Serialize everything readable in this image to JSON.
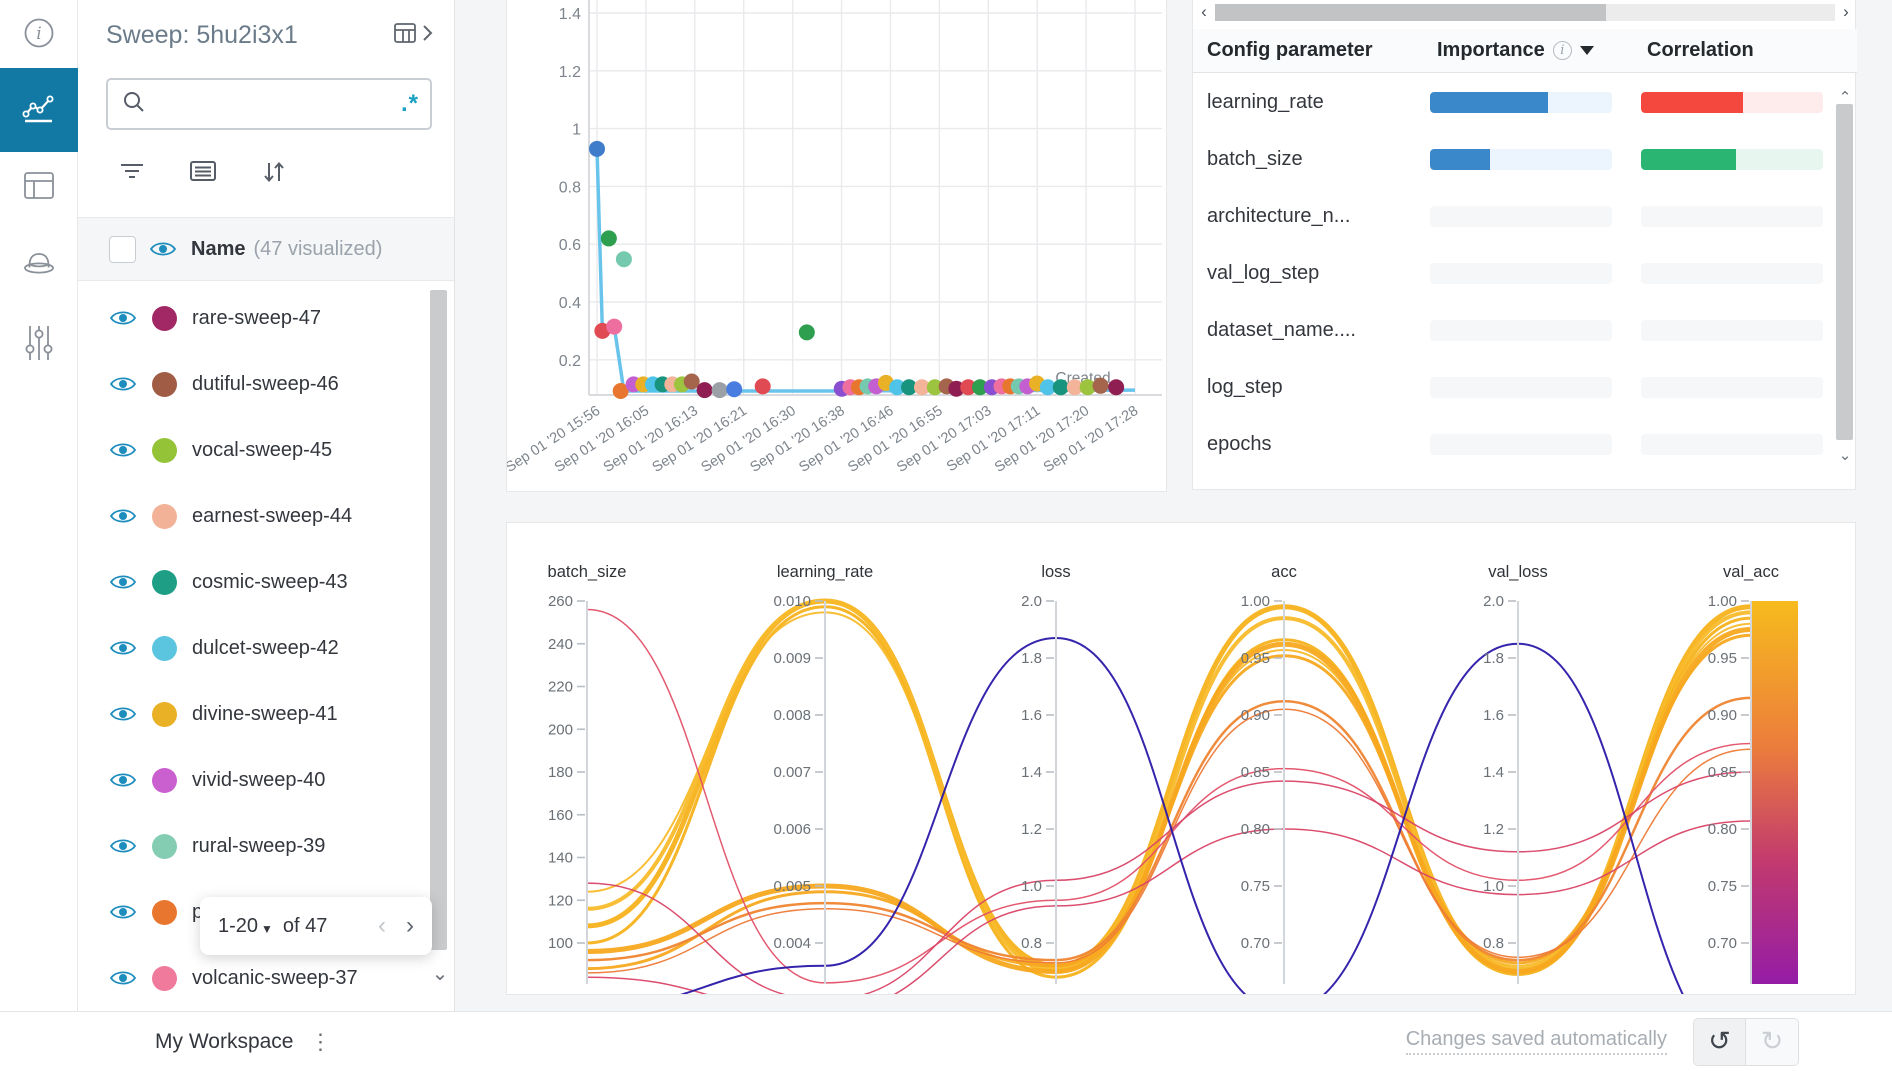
{
  "nav_rail": {
    "active_color": "#1279a5",
    "items": [
      {
        "icon": "info-icon",
        "active": false
      },
      {
        "icon": "panels-chart-icon",
        "active": true
      },
      {
        "icon": "runs-table-icon",
        "active": false
      },
      {
        "icon": "sweep-hat-icon",
        "active": false
      },
      {
        "icon": "controls-icon",
        "active": false
      }
    ]
  },
  "sidebar": {
    "title": "Sweep: 5hu2i3x1",
    "search": {
      "placeholder": "",
      "regex_label": ".*"
    },
    "list_header": {
      "name_label": "Name",
      "count_label": "(47 visualized)"
    },
    "runs": [
      {
        "name": "rare-sweep-47",
        "color": "#a12864"
      },
      {
        "name": "dutiful-sweep-46",
        "color": "#a05c45"
      },
      {
        "name": "vocal-sweep-45",
        "color": "#94c337"
      },
      {
        "name": "earnest-sweep-44",
        "color": "#f2b297"
      },
      {
        "name": "cosmic-sweep-43",
        "color": "#1d9e85"
      },
      {
        "name": "dulcet-sweep-42",
        "color": "#5bc5e0"
      },
      {
        "name": "divine-sweep-41",
        "color": "#e9b126"
      },
      {
        "name": "vivid-sweep-40",
        "color": "#ca5fcf"
      },
      {
        "name": "rural-sweep-39",
        "color": "#85cdb2"
      },
      {
        "name": "p",
        "color": "#e8762e"
      },
      {
        "name": "volcanic-sweep-37",
        "color": "#ef7a9b"
      }
    ],
    "pagination": {
      "range_label": "1-20",
      "of_label": "of 47"
    }
  },
  "importance_panel": {
    "col_param": "Config parameter",
    "col_importance": "Importance",
    "col_correlation": "Correlation",
    "rows": [
      {
        "param": "learning_rate",
        "importance": 0.65,
        "importance_color": "#3a87c9",
        "importance_track": "#ecf5fd",
        "correlation": 0.56,
        "correlation_color": "#f4483e",
        "correlation_track": "#fdeceb"
      },
      {
        "param": "batch_size",
        "importance": 0.33,
        "importance_color": "#3a87c9",
        "importance_track": "#ecf5fd",
        "correlation": 0.52,
        "correlation_color": "#2bb573",
        "correlation_track": "#e7f7f0"
      },
      {
        "param": "architecture_n...",
        "importance": 0,
        "importance_color": "#3a87c9",
        "importance_track": "#f6f7f9",
        "correlation": 0,
        "correlation_color": "#2bb573",
        "correlation_track": "#f6f7f9"
      },
      {
        "param": "val_log_step",
        "importance": 0,
        "importance_color": "#3a87c9",
        "importance_track": "#f6f7f9",
        "correlation": 0,
        "correlation_color": "#2bb573",
        "correlation_track": "#f6f7f9"
      },
      {
        "param": "dataset_name....",
        "importance": 0,
        "importance_color": "#3a87c9",
        "importance_track": "#f6f7f9",
        "correlation": 0,
        "correlation_color": "#2bb573",
        "correlation_track": "#f6f7f9"
      },
      {
        "param": "log_step",
        "importance": 0,
        "importance_color": "#3a87c9",
        "importance_track": "#f6f7f9",
        "correlation": 0,
        "correlation_color": "#2bb573",
        "correlation_track": "#f6f7f9"
      },
      {
        "param": "epochs",
        "importance": 0,
        "importance_color": "#3a87c9",
        "importance_track": "#f6f7f9",
        "correlation": 0,
        "correlation_color": "#2bb573",
        "correlation_track": "#f6f7f9"
      }
    ]
  },
  "footer": {
    "workspace_label": "My Workspace",
    "status_text": "Changes saved automatically"
  },
  "chart_data": [
    {
      "type": "scatter",
      "title": "",
      "xlabel": "Created",
      "ylabel": "",
      "ylim": [
        0.08,
        1.45
      ],
      "yticks": [
        {
          "v": 1.4,
          "label": "1.4"
        },
        {
          "v": 1.2,
          "label": "1.2"
        },
        {
          "v": 1.0,
          "label": "1"
        },
        {
          "v": 0.8,
          "label": "0.8"
        },
        {
          "v": 0.6,
          "label": "0.6"
        },
        {
          "v": 0.4,
          "label": "0.4"
        },
        {
          "v": 0.2,
          "label": "0.2"
        }
      ],
      "xtick_labels": [
        "Sep 01 '20 15:56",
        "Sep 01 '20 16:05",
        "Sep 01 '20 16:13",
        "Sep 01 '20 16:21",
        "Sep 01 '20 16:30",
        "Sep 01 '20 16:38",
        "Sep 01 '20 16:46",
        "Sep 01 '20 16:55",
        "Sep 01 '20 17:03",
        "Sep 01 '20 17:11",
        "Sep 01 '20 17:20",
        "Sep 01 '20 17:28"
      ],
      "x_unit": "fraction of x-axis span (15:56 -> 17:28)",
      "grid": true,
      "line_series": {
        "color": "#69c4ec",
        "width": 3.5,
        "points": [
          [
            0,
            0.93
          ],
          [
            0.01,
            0.3
          ],
          [
            0.032,
            0.315
          ],
          [
            0.05,
            0.092
          ],
          [
            0.42,
            0.092
          ],
          [
            1.0,
            0.095
          ]
        ]
      },
      "points": [
        {
          "x": 0.0,
          "y": 0.93,
          "color": "#3f7cc9"
        },
        {
          "x": 0.01,
          "y": 0.3,
          "color": "#e04a52"
        },
        {
          "x": 0.032,
          "y": 0.315,
          "color": "#ee6e9f"
        },
        {
          "x": 0.022,
          "y": 0.62,
          "color": "#2e9e4f"
        },
        {
          "x": 0.05,
          "y": 0.548,
          "color": "#74c9ae"
        },
        {
          "x": 0.044,
          "y": 0.092,
          "color": "#e8762e"
        },
        {
          "x": 0.068,
          "y": 0.115,
          "color": "#c35fd0"
        },
        {
          "x": 0.086,
          "y": 0.115,
          "color": "#e9b126"
        },
        {
          "x": 0.104,
          "y": 0.115,
          "color": "#4fc3e8"
        },
        {
          "x": 0.122,
          "y": 0.115,
          "color": "#17937e"
        },
        {
          "x": 0.14,
          "y": 0.115,
          "color": "#f3b499"
        },
        {
          "x": 0.158,
          "y": 0.115,
          "color": "#9cc43f"
        },
        {
          "x": 0.176,
          "y": 0.125,
          "color": "#a4654c"
        },
        {
          "x": 0.2,
          "y": 0.095,
          "color": "#8f1f52"
        },
        {
          "x": 0.228,
          "y": 0.095,
          "color": "#9aa0a6"
        },
        {
          "x": 0.255,
          "y": 0.098,
          "color": "#4a7de0"
        },
        {
          "x": 0.308,
          "y": 0.108,
          "color": "#e04a52"
        },
        {
          "x": 0.39,
          "y": 0.295,
          "color": "#2e9e4f"
        },
        {
          "x": 0.455,
          "y": 0.1,
          "color": "#8a4fd0"
        },
        {
          "x": 0.471,
          "y": 0.105,
          "color": "#ee6e9f"
        },
        {
          "x": 0.487,
          "y": 0.105,
          "color": "#e8762e"
        },
        {
          "x": 0.503,
          "y": 0.108,
          "color": "#74c9ae"
        },
        {
          "x": 0.519,
          "y": 0.108,
          "color": "#c35fd0"
        },
        {
          "x": 0.537,
          "y": 0.12,
          "color": "#e9b126"
        },
        {
          "x": 0.558,
          "y": 0.105,
          "color": "#4fc3e8"
        },
        {
          "x": 0.58,
          "y": 0.105,
          "color": "#17937e"
        },
        {
          "x": 0.604,
          "y": 0.105,
          "color": "#f3b499"
        },
        {
          "x": 0.628,
          "y": 0.105,
          "color": "#9cc43f"
        },
        {
          "x": 0.65,
          "y": 0.108,
          "color": "#a4654c"
        },
        {
          "x": 0.668,
          "y": 0.1,
          "color": "#8f1f52"
        },
        {
          "x": 0.69,
          "y": 0.105,
          "color": "#e04a52"
        },
        {
          "x": 0.712,
          "y": 0.105,
          "color": "#2e9e4f"
        },
        {
          "x": 0.734,
          "y": 0.105,
          "color": "#8a4fd0"
        },
        {
          "x": 0.752,
          "y": 0.108,
          "color": "#ee6e9f"
        },
        {
          "x": 0.768,
          "y": 0.108,
          "color": "#e8762e"
        },
        {
          "x": 0.784,
          "y": 0.108,
          "color": "#74c9ae"
        },
        {
          "x": 0.8,
          "y": 0.108,
          "color": "#c35fd0"
        },
        {
          "x": 0.818,
          "y": 0.118,
          "color": "#e9b126"
        },
        {
          "x": 0.838,
          "y": 0.105,
          "color": "#4fc3e8"
        },
        {
          "x": 0.862,
          "y": 0.105,
          "color": "#17937e"
        },
        {
          "x": 0.888,
          "y": 0.105,
          "color": "#f3b499"
        },
        {
          "x": 0.912,
          "y": 0.105,
          "color": "#9cc43f"
        },
        {
          "x": 0.936,
          "y": 0.11,
          "color": "#a4654c"
        },
        {
          "x": 0.965,
          "y": 0.105,
          "color": "#8f1f52"
        }
      ]
    },
    {
      "type": "parallel",
      "axes": [
        {
          "name": "batch_size",
          "range": [
            100,
            260
          ],
          "ticks": [
            "260",
            "240",
            "220",
            "200",
            "180",
            "160",
            "140",
            "120",
            "100"
          ]
        },
        {
          "name": "learning_rate",
          "range": [
            0.004,
            0.01
          ],
          "ticks": [
            "0.010",
            "0.009",
            "0.008",
            "0.007",
            "0.006",
            "0.005",
            "0.004"
          ]
        },
        {
          "name": "loss",
          "range": [
            0.8,
            2.0
          ],
          "ticks": [
            "2.0",
            "1.8",
            "1.6",
            "1.4",
            "1.2",
            "1.0",
            "0.8"
          ]
        },
        {
          "name": "acc",
          "range": [
            0.7,
            1.0
          ],
          "ticks": [
            "1.00",
            "0.95",
            "0.90",
            "0.85",
            "0.80",
            "0.75",
            "0.70"
          ]
        },
        {
          "name": "val_loss",
          "range": [
            0.8,
            2.0
          ],
          "ticks": [
            "2.0",
            "1.8",
            "1.6",
            "1.4",
            "1.2",
            "1.0",
            "0.8"
          ]
        },
        {
          "name": "val_acc",
          "range": [
            0.7,
            1.0
          ],
          "ticks": [
            "1.00",
            "0.95",
            "0.90",
            "0.85",
            "0.80",
            "0.75",
            "0.70"
          ]
        }
      ],
      "colorbar": {
        "axis": "val_acc",
        "stops": [
          {
            "at": 0,
            "color": "#f6bb1d"
          },
          {
            "at": 0.38,
            "color": "#ec7d3c"
          },
          {
            "at": 0.68,
            "color": "#c23a6e"
          },
          {
            "at": 1,
            "color": "#941ca6"
          }
        ]
      },
      "runs": [
        {
          "values": [
            108,
            0.01,
            0.72,
            0.995,
            0.7,
            0.995
          ],
          "color": "#f6b21b",
          "width": 5
        },
        {
          "values": [
            116,
            0.01,
            0.7,
            0.985,
            0.71,
            0.99
          ],
          "color": "#f8bb2a",
          "width": 4
        },
        {
          "values": [
            100,
            0.0099,
            0.68,
            0.966,
            0.69,
            0.985
          ],
          "color": "#f6b21b",
          "width": 3
        },
        {
          "values": [
            124,
            0.0098,
            0.71,
            0.957,
            0.72,
            0.98
          ],
          "color": "#f8bb2a",
          "width": 2
        },
        {
          "values": [
            96,
            0.005,
            0.7,
            0.962,
            0.7,
            0.975
          ],
          "color": "#f7a81f",
          "width": 5
        },
        {
          "values": [
            88,
            0.0049,
            0.72,
            0.952,
            0.73,
            0.97
          ],
          "color": "#f7a81f",
          "width": 3
        },
        {
          "values": [
            92,
            0.0047,
            0.74,
            0.912,
            0.74,
            0.915
          ],
          "color": "#ef8531",
          "width": 2.5
        },
        {
          "values": [
            86,
            0.0046,
            0.73,
            0.905,
            0.75,
            0.87
          ],
          "color": "#ee7a36",
          "width": 1.5
        },
        {
          "values": [
            256,
            0.0033,
            0.95,
            0.853,
            1.02,
            0.875
          ],
          "color": "#e25068",
          "width": 1.5
        },
        {
          "values": [
            128,
            0.003,
            1.02,
            0.842,
            1.12,
            0.85
          ],
          "color": "#d94567",
          "width": 1.5
        },
        {
          "values": [
            84,
            0.0028,
            0.93,
            0.8,
            0.97,
            0.807
          ],
          "color": "#d94567",
          "width": 1.5
        },
        {
          "values": [
            70,
            0.0036,
            1.87,
            0.64,
            1.85,
            0.6
          ],
          "color": "#2a18a8",
          "width": 2
        }
      ]
    }
  ]
}
